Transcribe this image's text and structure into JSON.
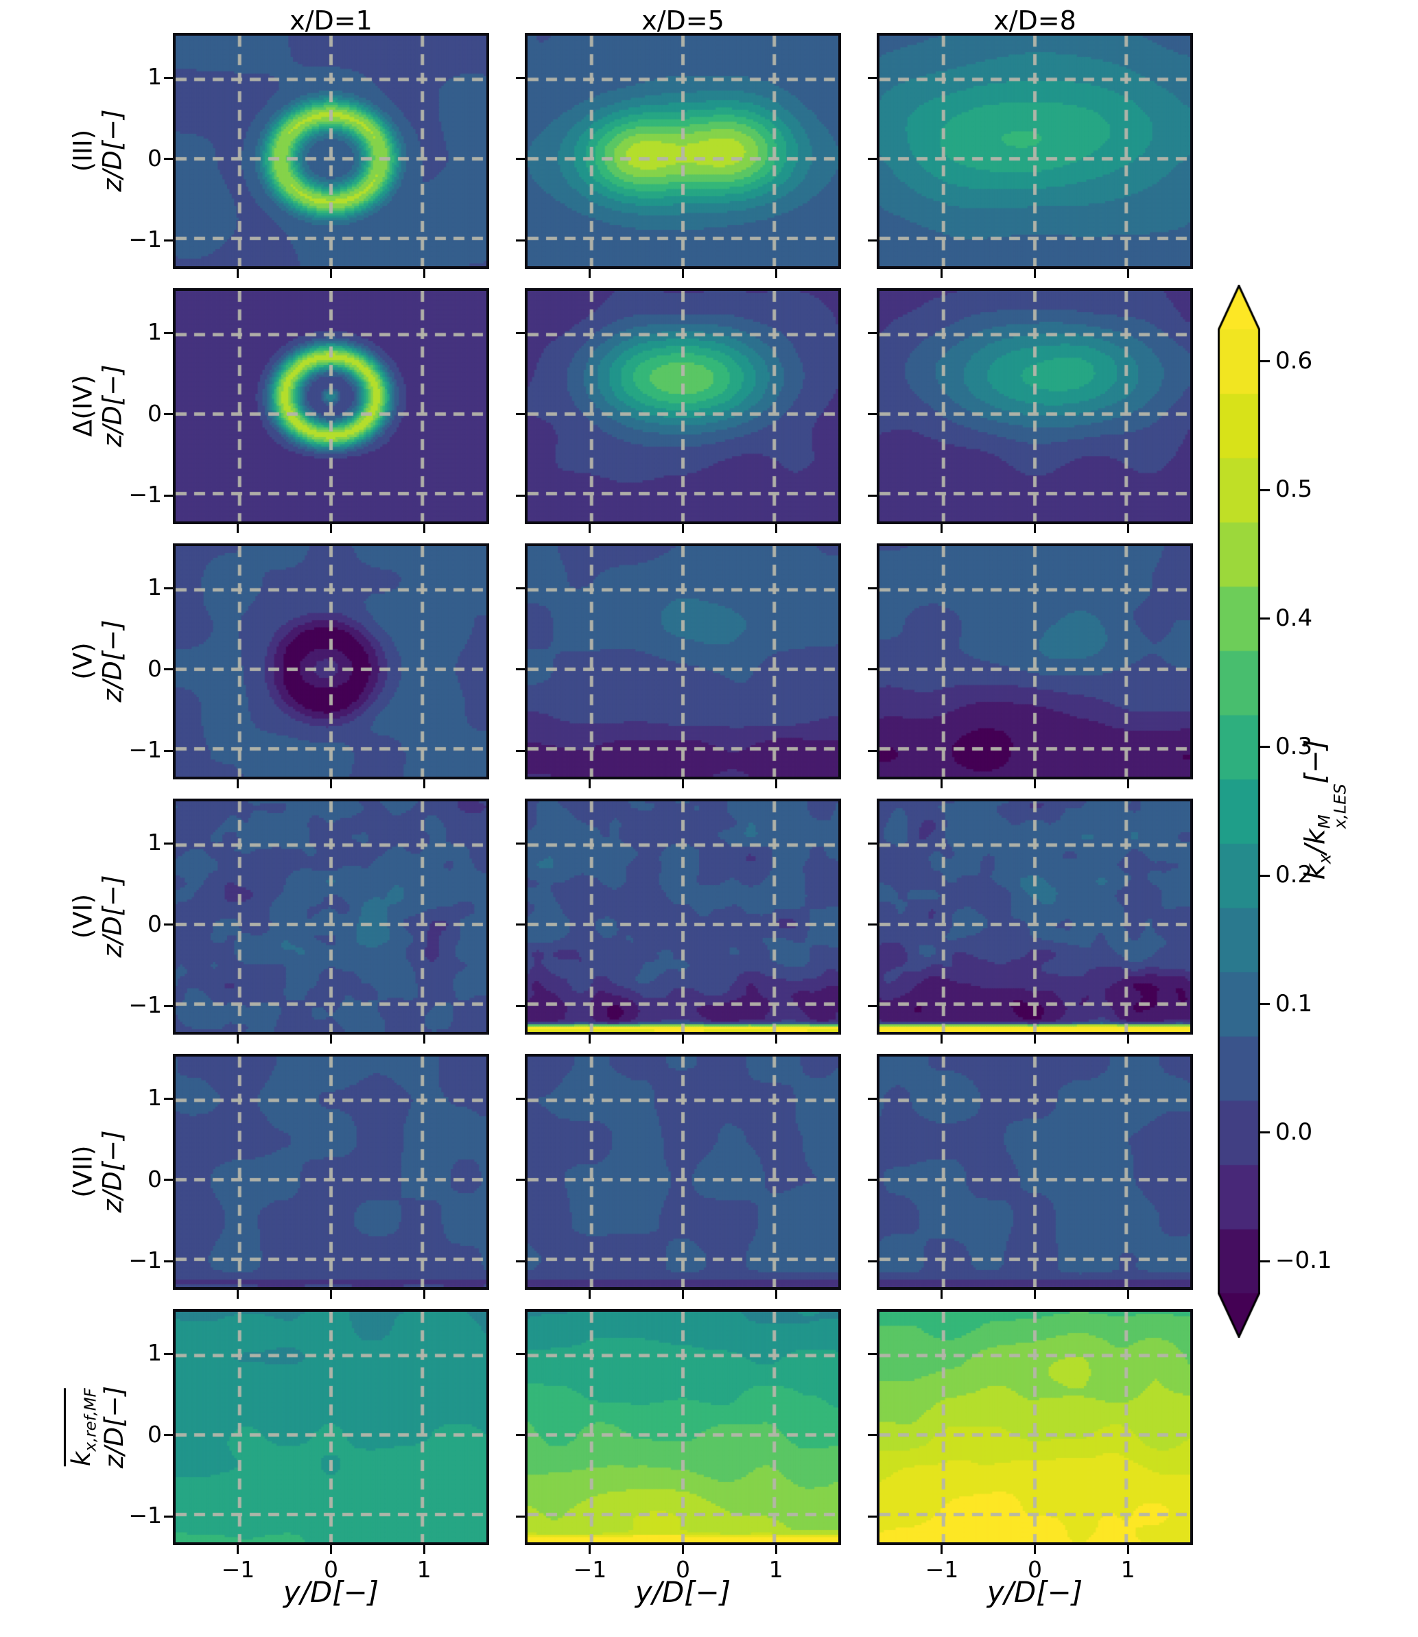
{
  "colors": {
    "background": "#ffffff",
    "panel_border": "#0b0b13",
    "grid_dash": "#b5b5aa",
    "viridis_anchors": [
      "#440154",
      "#482878",
      "#3e4a89",
      "#31688e",
      "#26828e",
      "#1f9e89",
      "#35b779",
      "#6dcd59",
      "#b4de2c",
      "#d8e219",
      "#fde725"
    ]
  },
  "chart_data": {
    "type": "heatmap",
    "columns": [
      "x/D=1",
      "x/D=5",
      "x/D=8"
    ],
    "rows": [
      {
        "id": "(III)"
      },
      {
        "id": "Δ(IV)"
      },
      {
        "id": "(V)"
      },
      {
        "id": "(VI)"
      },
      {
        "id": "(VII)"
      },
      {
        "id": "k_ref_MF",
        "main": "k",
        "sub": "x,ref,MF",
        "overline": true
      }
    ],
    "xlabel": "y/D[−]",
    "ylabel": "z/D[−]",
    "x_ticks": [
      {
        "value": -1,
        "label": "−1"
      },
      {
        "value": 0,
        "label": "0"
      },
      {
        "value": 1,
        "label": "1"
      }
    ],
    "z_ticks": [
      {
        "value": 1,
        "label": "1"
      },
      {
        "value": 0,
        "label": "0"
      },
      {
        "value": -1,
        "label": "−1"
      }
    ],
    "x_range": [
      -1.7,
      1.7
    ],
    "z_range": [
      -1.35,
      1.55
    ],
    "grid": {
      "x": [
        -1,
        0,
        1
      ],
      "z": [
        -1,
        0,
        1
      ]
    },
    "colorbar": {
      "label": {
        "p1": "k",
        "s1": "x",
        "p2": "/k",
        "sup": "M",
        "s2": "x,LES",
        "p3": "[−]"
      },
      "vmin": -0.125,
      "vmax": 0.625,
      "level_step": 0.05,
      "extend": "both",
      "ticks": [
        {
          "value": 0.6,
          "label": "0.6"
        },
        {
          "value": 0.5,
          "label": "0.5"
        },
        {
          "value": 0.4,
          "label": "0.4"
        },
        {
          "value": 0.3,
          "label": "0.3"
        },
        {
          "value": 0.2,
          "label": "0.2"
        },
        {
          "value": 0.1,
          "label": "0.1"
        },
        {
          "value": 0.0,
          "label": "0.0"
        },
        {
          "value": -0.1,
          "label": "−0.1"
        }
      ]
    },
    "panels": [
      {
        "row": 0,
        "col": 0,
        "base": 0.05,
        "features": [
          {
            "t": "ring",
            "cx": 0,
            "cy": 0,
            "r": 0.55,
            "w": 0.14,
            "a": 0.4
          },
          {
            "t": "noise",
            "f": 1.3,
            "a": 0.012,
            "s": 11
          }
        ]
      },
      {
        "row": 0,
        "col": 1,
        "base": 0.06,
        "features": [
          {
            "t": "gauss",
            "cx": -0.5,
            "cy": 0.05,
            "sx": 0.42,
            "sy": 0.4,
            "a": 0.3
          },
          {
            "t": "gauss",
            "cx": 0.55,
            "cy": 0.1,
            "sx": 0.45,
            "sy": 0.4,
            "a": 0.32
          },
          {
            "t": "gauss",
            "cx": 0,
            "cy": -0.05,
            "sx": 1.1,
            "sy": 0.55,
            "a": 0.1
          },
          {
            "t": "noise",
            "f": 1.3,
            "a": 0.015,
            "s": 12
          }
        ]
      },
      {
        "row": 0,
        "col": 2,
        "base": 0.07,
        "features": [
          {
            "t": "gauss",
            "cx": 0.1,
            "cy": 0.35,
            "sx": 1.25,
            "sy": 0.65,
            "a": 0.22
          },
          {
            "t": "gauss",
            "cx": -0.9,
            "cy": 0.0,
            "sx": 0.55,
            "sy": 0.5,
            "a": 0.05
          },
          {
            "t": "noise",
            "f": 1.3,
            "a": 0.015,
            "s": 13
          }
        ]
      },
      {
        "row": 1,
        "col": 0,
        "base": -0.02,
        "features": [
          {
            "t": "ring",
            "cx": 0,
            "cy": 0.22,
            "r": 0.5,
            "w": 0.12,
            "a": 0.48
          },
          {
            "t": "gauss",
            "cx": 0,
            "cy": 0.22,
            "sx": 0.07,
            "sy": 0.07,
            "a": 0.2
          },
          {
            "t": "noise",
            "f": 1.6,
            "a": 0.02,
            "s": 21
          }
        ]
      },
      {
        "row": 1,
        "col": 1,
        "base": -0.02,
        "features": [
          {
            "t": "gauss",
            "cx": 0,
            "cy": 0.45,
            "sx": 0.7,
            "sy": 0.45,
            "a": 0.42
          },
          {
            "t": "noise",
            "f": 1.6,
            "a": 0.02,
            "s": 22
          }
        ]
      },
      {
        "row": 1,
        "col": 2,
        "base": -0.02,
        "features": [
          {
            "t": "gauss",
            "cx": 0.15,
            "cy": 0.5,
            "sx": 0.9,
            "sy": 0.5,
            "a": 0.3
          },
          {
            "t": "noise",
            "f": 1.6,
            "a": 0.02,
            "s": 23
          }
        ]
      },
      {
        "row": 2,
        "col": 0,
        "base": 0.05,
        "features": [
          {
            "t": "ring",
            "cx": -0.05,
            "cy": 0,
            "r": 0.42,
            "w": 0.18,
            "a": -0.16
          },
          {
            "t": "gauss",
            "cx": -0.05,
            "cy": 0,
            "sx": 0.25,
            "sy": 0.25,
            "a": -0.08
          },
          {
            "t": "noise",
            "f": 1.8,
            "a": 0.025,
            "s": 31
          }
        ]
      },
      {
        "row": 2,
        "col": 1,
        "base": 0.05,
        "features": [
          {
            "t": "gauss",
            "cx": 0.05,
            "cy": 0.55,
            "sx": 0.55,
            "sy": 0.35,
            "a": 0.08
          },
          {
            "t": "gauss",
            "cx": -0.2,
            "cy": -0.15,
            "sx": 0.5,
            "sy": 0.3,
            "a": -0.05
          },
          {
            "t": "hband",
            "z": -1.15,
            "w": 0.35,
            "a": -0.13
          },
          {
            "t": "noise",
            "f": 1.8,
            "a": 0.028,
            "s": 32
          }
        ]
      },
      {
        "row": 2,
        "col": 2,
        "base": 0.05,
        "features": [
          {
            "t": "gauss",
            "cx": 0.35,
            "cy": 0.35,
            "sx": 0.45,
            "sy": 0.3,
            "a": 0.08
          },
          {
            "t": "gauss",
            "cx": -0.5,
            "cy": -0.4,
            "sx": 0.8,
            "sy": 0.35,
            "a": -0.05
          },
          {
            "t": "hband",
            "z": -1.1,
            "w": 0.45,
            "a": -0.15
          },
          {
            "t": "noise",
            "f": 1.8,
            "a": 0.028,
            "s": 33
          }
        ]
      },
      {
        "row": 3,
        "col": 0,
        "base": 0.045,
        "features": [
          {
            "t": "ring",
            "cx": 0,
            "cy": 0.05,
            "r": 0.5,
            "w": 0.15,
            "a": 0.07
          },
          {
            "t": "noise",
            "f": 2.6,
            "a": 0.045,
            "s": 41
          },
          {
            "t": "noise",
            "f": 5.5,
            "a": 0.02,
            "s": 42
          }
        ]
      },
      {
        "row": 3,
        "col": 1,
        "base": 0.045,
        "features": [
          {
            "t": "hband",
            "z": -1.05,
            "w": 0.25,
            "a": -0.1
          },
          {
            "t": "hband",
            "z": -1.31,
            "w": 0.03,
            "a": 0.85
          },
          {
            "t": "noise",
            "f": 2.6,
            "a": 0.05,
            "s": 43
          },
          {
            "t": "noise",
            "f": 5.5,
            "a": 0.02,
            "s": 44
          }
        ]
      },
      {
        "row": 3,
        "col": 2,
        "base": 0.045,
        "features": [
          {
            "t": "hband",
            "z": -1.0,
            "w": 0.3,
            "a": -0.12
          },
          {
            "t": "hband",
            "z": -1.31,
            "w": 0.03,
            "a": 0.95
          },
          {
            "t": "gauss",
            "cx": 0.2,
            "cy": 0.55,
            "sx": 0.5,
            "sy": 0.3,
            "a": 0.05
          },
          {
            "t": "noise",
            "f": 2.6,
            "a": 0.05,
            "s": 45
          },
          {
            "t": "noise",
            "f": 5.5,
            "a": 0.02,
            "s": 46
          }
        ]
      },
      {
        "row": 4,
        "col": 0,
        "base": 0.05,
        "features": [
          {
            "t": "hband",
            "z": -1.3,
            "w": 0.05,
            "a": -0.06
          },
          {
            "t": "noise",
            "f": 2.0,
            "a": 0.008,
            "s": 51
          }
        ]
      },
      {
        "row": 4,
        "col": 1,
        "base": 0.05,
        "features": [
          {
            "t": "hband",
            "z": -1.3,
            "w": 0.05,
            "a": -0.07
          },
          {
            "t": "noise",
            "f": 2.0,
            "a": 0.008,
            "s": 52
          }
        ]
      },
      {
        "row": 4,
        "col": 2,
        "base": 0.05,
        "features": [
          {
            "t": "hband",
            "z": -1.3,
            "w": 0.05,
            "a": -0.07
          },
          {
            "t": "noise",
            "f": 2.0,
            "a": 0.008,
            "s": 53
          }
        ]
      },
      {
        "row": 5,
        "col": 0,
        "base": 0.24,
        "features": [
          {
            "t": "lingrad",
            "at": -0.045,
            "ab": 0.05
          },
          {
            "t": "noise",
            "f": 2.2,
            "a": 0.018,
            "s": 61
          }
        ]
      },
      {
        "row": 5,
        "col": 1,
        "base": 0.3,
        "features": [
          {
            "t": "lingrad",
            "at": -0.09,
            "ab": 0.17
          },
          {
            "t": "gauss",
            "cx": -0.3,
            "cy": -1.0,
            "sx": 0.5,
            "sy": 0.3,
            "a": 0.06
          },
          {
            "t": "hband",
            "z": -1.32,
            "w": 0.04,
            "a": 0.2
          },
          {
            "t": "noise",
            "f": 2.2,
            "a": 0.025,
            "s": 62
          }
        ]
      },
      {
        "row": 5,
        "col": 2,
        "base": 0.4,
        "features": [
          {
            "t": "lingrad",
            "at": -0.07,
            "ab": 0.2
          },
          {
            "t": "gauss",
            "cx": 0.1,
            "cy": -0.6,
            "sx": 0.9,
            "sy": 0.5,
            "a": 0.07
          },
          {
            "t": "gauss",
            "cx": 0.6,
            "cy": 1.0,
            "sx": 0.7,
            "sy": 0.35,
            "a": 0.05
          },
          {
            "t": "noise",
            "f": 2.2,
            "a": 0.025,
            "s": 63
          }
        ]
      }
    ]
  }
}
